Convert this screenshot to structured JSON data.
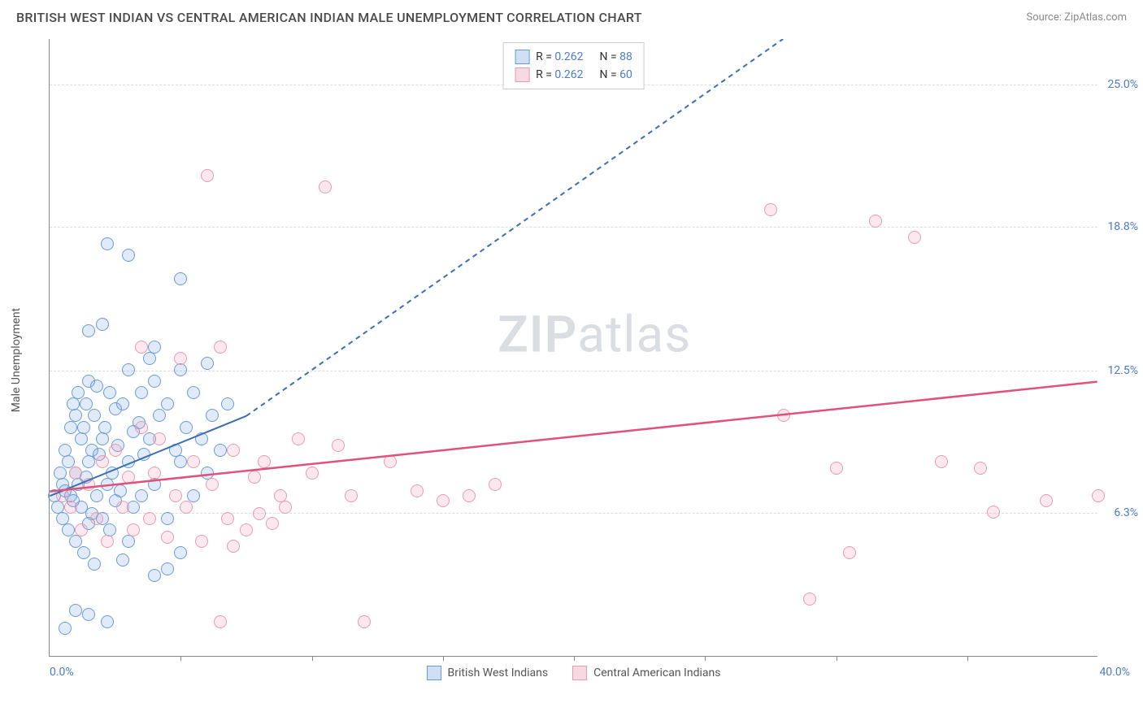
{
  "header": {
    "title": "BRITISH WEST INDIAN VS CENTRAL AMERICAN INDIAN MALE UNEMPLOYMENT CORRELATION CHART",
    "source": "Source: ZipAtlas.com"
  },
  "watermark": {
    "bold": "ZIP",
    "light": "atlas"
  },
  "chart": {
    "type": "scatter",
    "y_axis_label": "Male Unemployment",
    "xlim": [
      0,
      40
    ],
    "ylim": [
      0,
      27
    ],
    "x_ticks": {
      "min_label": "0.0%",
      "max_label": "40.0%",
      "marks": [
        5,
        10,
        15,
        20,
        25,
        30,
        35
      ]
    },
    "y_gridlines": [
      {
        "value": 6.3,
        "label": "6.3%"
      },
      {
        "value": 12.5,
        "label": "12.5%"
      },
      {
        "value": 18.8,
        "label": "18.8%"
      },
      {
        "value": 25.0,
        "label": "25.0%"
      }
    ],
    "background_color": "#ffffff",
    "grid_color": "#dddddd",
    "axis_color": "#888888",
    "tick_label_color": "#4a7bc8",
    "marker_radius": 8,
    "marker_stroke_width": 1.2,
    "marker_fill_opacity": 0.18,
    "series": [
      {
        "key": "british_west_indians",
        "label": "British West Indians",
        "color_stroke": "#6a9bd8",
        "color_fill": "rgba(120,165,220,0.22)",
        "swatch_fill": "#cfe0f4",
        "swatch_border": "#6a9bd8",
        "stats": {
          "r": "0.262",
          "n": "88"
        },
        "trend": {
          "solid": {
            "x1": 0,
            "y1": 7.0,
            "x2": 7.5,
            "y2": 10.5
          },
          "dashed": {
            "x1": 7.5,
            "y1": 10.5,
            "x2": 28,
            "y2": 27
          },
          "line_color": "#3d6db3",
          "line_width": 2
        },
        "points": [
          [
            0.2,
            7.0
          ],
          [
            0.3,
            6.5
          ],
          [
            0.4,
            8.0
          ],
          [
            0.5,
            7.5
          ],
          [
            0.5,
            6.0
          ],
          [
            0.6,
            9.0
          ],
          [
            0.6,
            7.2
          ],
          [
            0.7,
            8.5
          ],
          [
            0.7,
            5.5
          ],
          [
            0.8,
            10.0
          ],
          [
            0.8,
            7.0
          ],
          [
            0.9,
            11.0
          ],
          [
            0.9,
            6.8
          ],
          [
            1.0,
            10.5
          ],
          [
            1.0,
            8.0
          ],
          [
            1.0,
            5.0
          ],
          [
            1.1,
            11.5
          ],
          [
            1.1,
            7.5
          ],
          [
            1.2,
            9.5
          ],
          [
            1.2,
            6.5
          ],
          [
            1.3,
            10.0
          ],
          [
            1.3,
            4.5
          ],
          [
            1.4,
            11.0
          ],
          [
            1.4,
            7.8
          ],
          [
            1.5,
            12.0
          ],
          [
            1.5,
            8.5
          ],
          [
            1.5,
            5.8
          ],
          [
            1.6,
            9.0
          ],
          [
            1.6,
            6.2
          ],
          [
            1.7,
            10.5
          ],
          [
            1.7,
            4.0
          ],
          [
            1.8,
            11.8
          ],
          [
            1.8,
            7.0
          ],
          [
            1.9,
            8.8
          ],
          [
            2.0,
            14.5
          ],
          [
            2.0,
            9.5
          ],
          [
            2.0,
            6.0
          ],
          [
            2.1,
            10.0
          ],
          [
            2.2,
            7.5
          ],
          [
            2.3,
            11.5
          ],
          [
            2.3,
            5.5
          ],
          [
            2.4,
            8.0
          ],
          [
            2.5,
            10.8
          ],
          [
            2.5,
            6.8
          ],
          [
            2.6,
            9.2
          ],
          [
            2.7,
            7.2
          ],
          [
            2.8,
            11.0
          ],
          [
            2.8,
            4.2
          ],
          [
            3.0,
            12.5
          ],
          [
            3.0,
            8.5
          ],
          [
            3.0,
            5.0
          ],
          [
            3.2,
            9.8
          ],
          [
            3.2,
            6.5
          ],
          [
            3.4,
            10.2
          ],
          [
            3.5,
            11.5
          ],
          [
            3.5,
            7.0
          ],
          [
            3.6,
            8.8
          ],
          [
            3.8,
            13.0
          ],
          [
            3.8,
            9.5
          ],
          [
            4.0,
            12.0
          ],
          [
            4.0,
            7.5
          ],
          [
            4.0,
            3.5
          ],
          [
            4.2,
            10.5
          ],
          [
            4.5,
            11.0
          ],
          [
            4.5,
            6.0
          ],
          [
            4.5,
            3.8
          ],
          [
            4.8,
            9.0
          ],
          [
            5.0,
            16.5
          ],
          [
            5.0,
            12.5
          ],
          [
            5.0,
            8.5
          ],
          [
            5.0,
            4.5
          ],
          [
            5.2,
            10.0
          ],
          [
            5.5,
            11.5
          ],
          [
            5.5,
            7.0
          ],
          [
            5.8,
            9.5
          ],
          [
            6.0,
            12.8
          ],
          [
            6.0,
            8.0
          ],
          [
            6.2,
            10.5
          ],
          [
            6.5,
            9.0
          ],
          [
            6.8,
            11.0
          ],
          [
            2.2,
            18.0
          ],
          [
            2.2,
            1.5
          ],
          [
            1.5,
            1.8
          ],
          [
            1.5,
            14.2
          ],
          [
            3.0,
            17.5
          ],
          [
            0.6,
            1.2
          ],
          [
            1.0,
            2.0
          ],
          [
            4.0,
            13.5
          ]
        ]
      },
      {
        "key": "central_american_indians",
        "label": "Central American Indians",
        "color_stroke": "#e89ab0",
        "color_fill": "rgba(235,155,180,0.22)",
        "swatch_fill": "#f7d9e2",
        "swatch_border": "#e89ab0",
        "stats": {
          "r": "0.262",
          "n": "60"
        },
        "trend": {
          "solid": {
            "x1": 0,
            "y1": 7.2,
            "x2": 40,
            "y2": 12.0
          },
          "line_color": "#e0527a",
          "line_width": 2.5
        },
        "points": [
          [
            0.5,
            7.0
          ],
          [
            0.8,
            6.5
          ],
          [
            1.0,
            8.0
          ],
          [
            1.2,
            5.5
          ],
          [
            1.5,
            7.5
          ],
          [
            1.8,
            6.0
          ],
          [
            2.0,
            8.5
          ],
          [
            2.2,
            5.0
          ],
          [
            2.5,
            9.0
          ],
          [
            2.8,
            6.5
          ],
          [
            3.0,
            7.8
          ],
          [
            3.2,
            5.5
          ],
          [
            3.5,
            10.0
          ],
          [
            3.5,
            13.5
          ],
          [
            3.8,
            6.0
          ],
          [
            4.0,
            8.0
          ],
          [
            4.2,
            9.5
          ],
          [
            4.5,
            5.2
          ],
          [
            4.8,
            7.0
          ],
          [
            5.0,
            13.0
          ],
          [
            5.2,
            6.5
          ],
          [
            5.5,
            8.5
          ],
          [
            5.8,
            5.0
          ],
          [
            6.0,
            21.0
          ],
          [
            6.2,
            7.5
          ],
          [
            6.5,
            13.5
          ],
          [
            6.8,
            6.0
          ],
          [
            7.0,
            9.0
          ],
          [
            7.5,
            5.5
          ],
          [
            7.8,
            7.8
          ],
          [
            8.0,
            6.2
          ],
          [
            8.2,
            8.5
          ],
          [
            8.5,
            5.8
          ],
          [
            6.5,
            1.5
          ],
          [
            7.0,
            4.8
          ],
          [
            8.8,
            7.0
          ],
          [
            9.0,
            6.5
          ],
          [
            9.5,
            9.5
          ],
          [
            10.0,
            8.0
          ],
          [
            10.5,
            20.5
          ],
          [
            11.0,
            9.2
          ],
          [
            11.5,
            7.0
          ],
          [
            12.0,
            1.5
          ],
          [
            13.0,
            8.5
          ],
          [
            14.0,
            7.2
          ],
          [
            15.0,
            6.8
          ],
          [
            16.0,
            7.0
          ],
          [
            17.0,
            7.5
          ],
          [
            27.5,
            19.5
          ],
          [
            28.0,
            10.5
          ],
          [
            29.0,
            2.5
          ],
          [
            30.0,
            8.2
          ],
          [
            30.5,
            4.5
          ],
          [
            31.5,
            19.0
          ],
          [
            33.0,
            18.3
          ],
          [
            34.0,
            8.5
          ],
          [
            35.5,
            8.2
          ],
          [
            36.0,
            6.3
          ],
          [
            38.0,
            6.8
          ],
          [
            40.0,
            7.0
          ]
        ]
      }
    ],
    "legend_bottom": [
      {
        "series": 0
      },
      {
        "series": 1
      }
    ]
  }
}
